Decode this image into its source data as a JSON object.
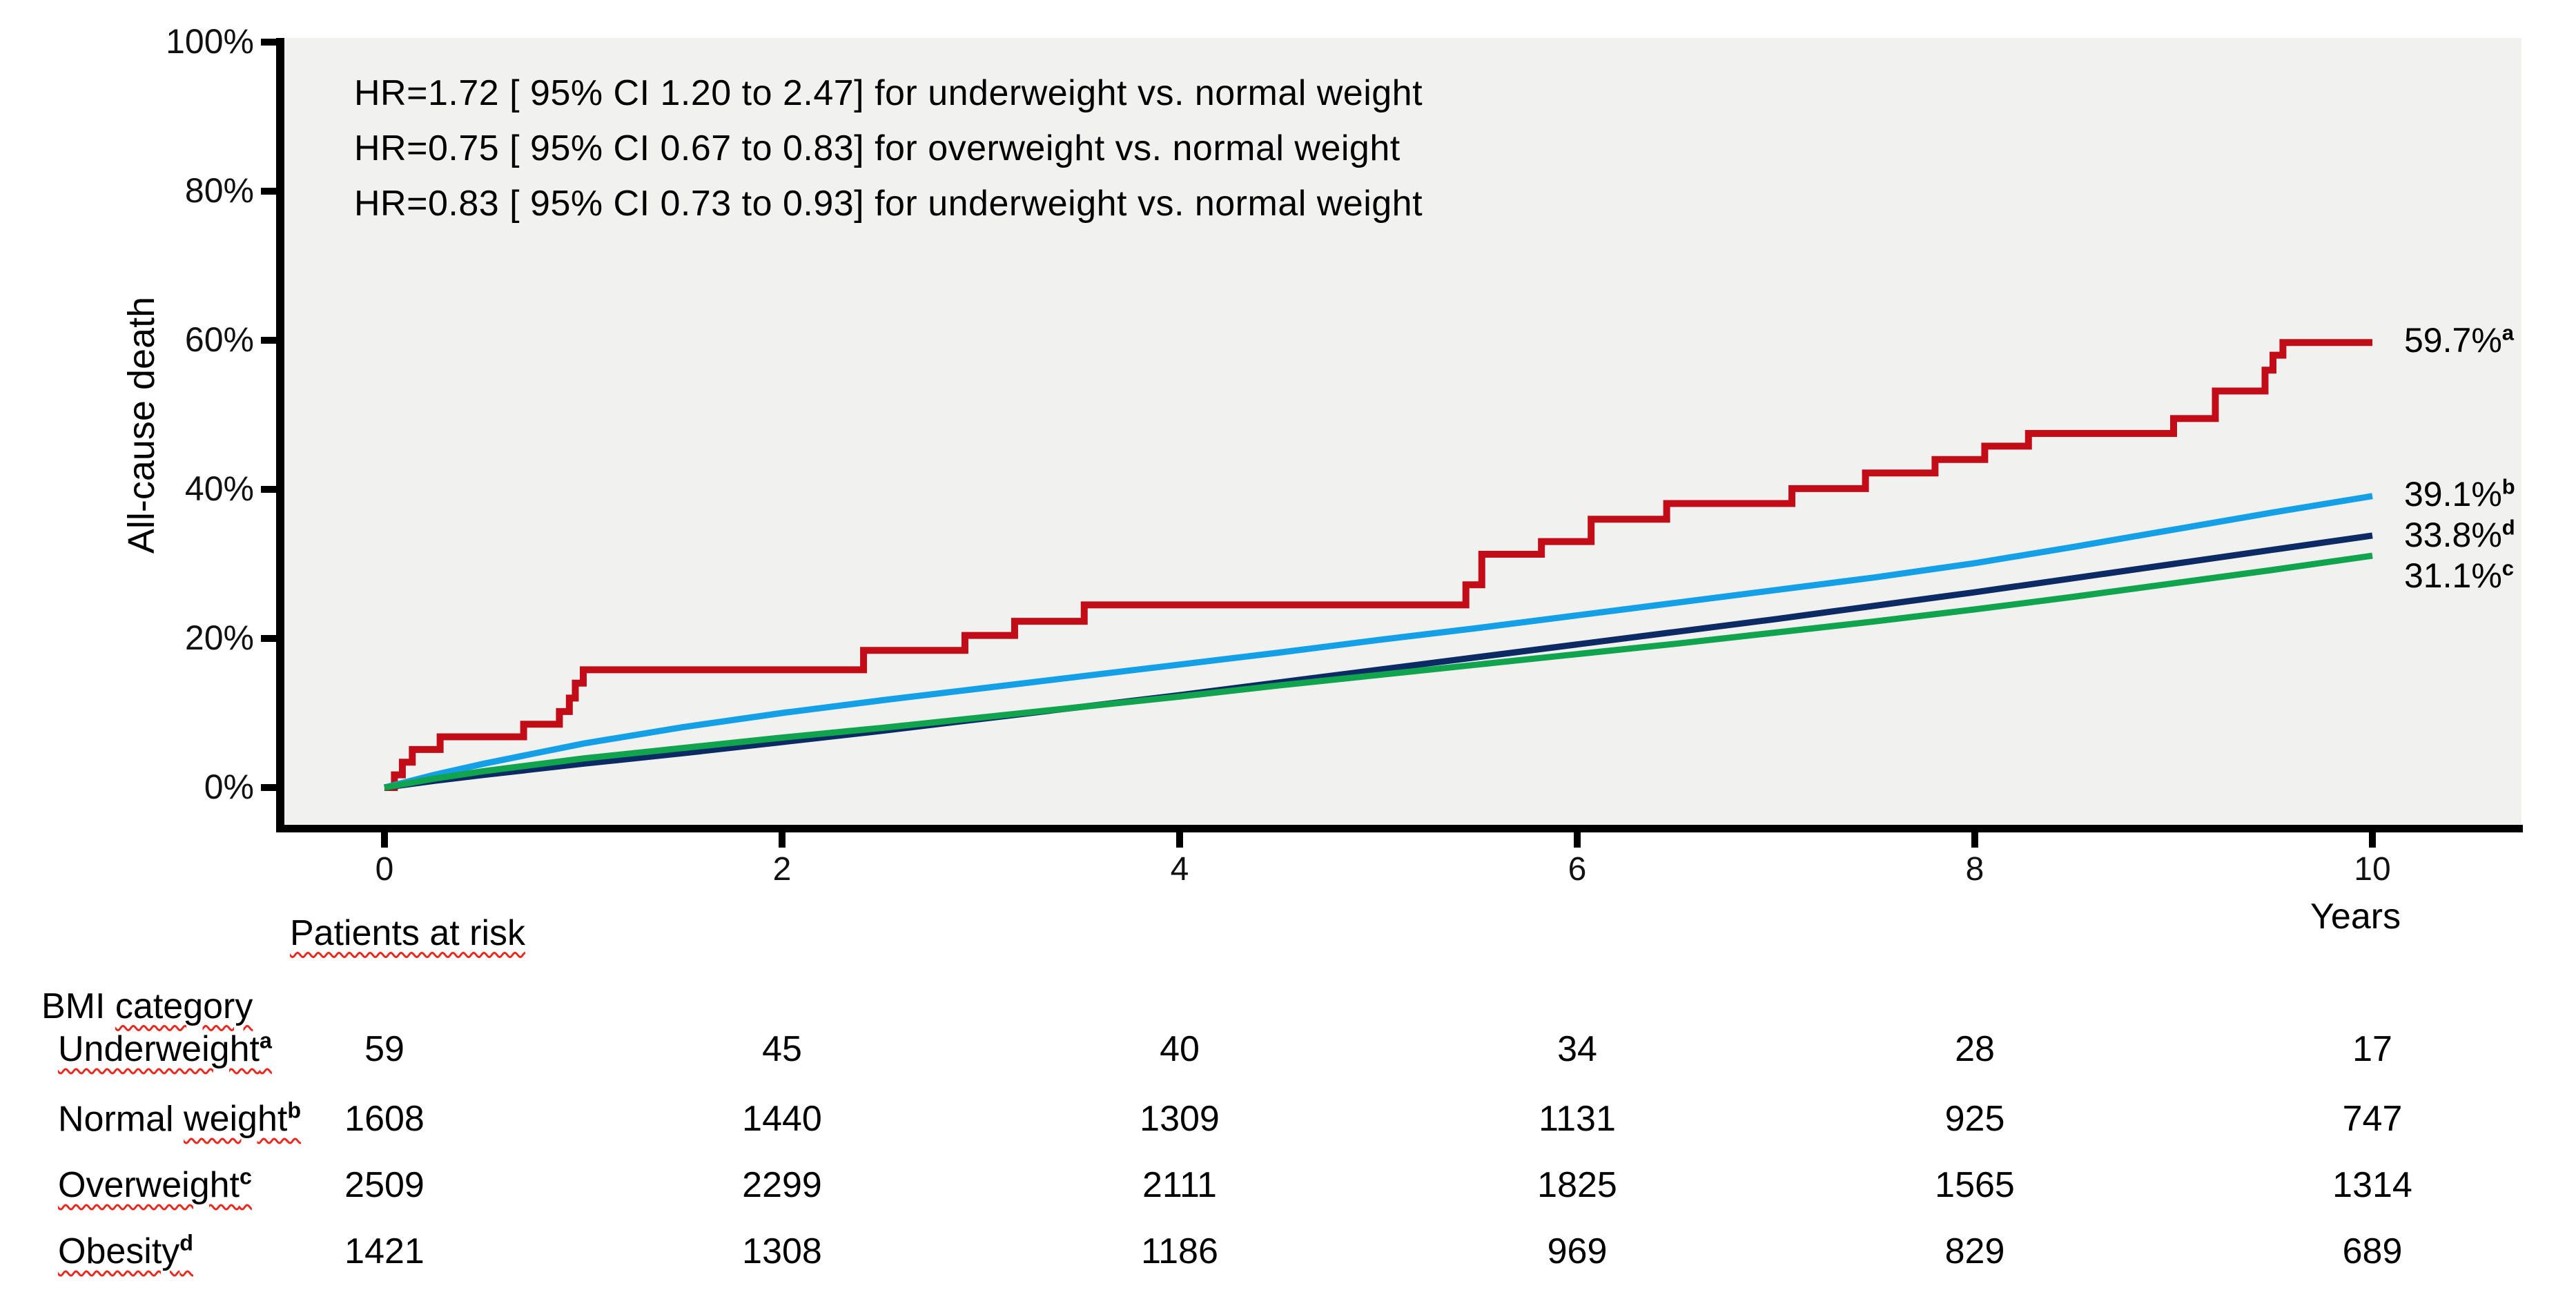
{
  "annotations": {
    "hr_lines": [
      "HR=1.72 [ 95% CI 1.20 to 2.47] for underweight vs. normal weight",
      "HR=0.75 [ 95% CI 0.67 to 0.83] for overweight vs. normal weight",
      "HR=0.83 [ 95% CI 0.73 to 0.93] for underweight vs. normal weight"
    ]
  },
  "chart_data": {
    "type": "line",
    "title": "",
    "ylabel": "All-cause death",
    "xlabel": "Years",
    "ylim": [
      0,
      100
    ],
    "xlim": [
      0,
      11
    ],
    "grid": false,
    "legend_position": "end-of-line labels",
    "plot_background": "#f1f1f0",
    "axis_color": "#000000",
    "yticks": [
      {
        "value": 0,
        "label": "0%"
      },
      {
        "value": 20,
        "label": "20%"
      },
      {
        "value": 40,
        "label": "40%"
      },
      {
        "value": 60,
        "label": "60%"
      },
      {
        "value": 80,
        "label": "80%"
      },
      {
        "value": 100,
        "label": "100%"
      }
    ],
    "xticks": [
      {
        "value": 0,
        "label": "0"
      },
      {
        "value": 2,
        "label": "2"
      },
      {
        "value": 4,
        "label": "4"
      },
      {
        "value": 6,
        "label": "6"
      },
      {
        "value": 8,
        "label": "8"
      },
      {
        "value": 10,
        "label": "10"
      }
    ],
    "series": [
      {
        "name": "Underweight",
        "letter": "a",
        "color": "#c20d18",
        "style": "step",
        "stroke_width": 10,
        "end_label": "59.7%",
        "end_label_sup": "a",
        "end_value": 59.7,
        "label_dy": 0,
        "points": [
          [
            0,
            0
          ],
          [
            0.05,
            1.7
          ],
          [
            0.09,
            3.4
          ],
          [
            0.14,
            5.1
          ],
          [
            0.28,
            6.8
          ],
          [
            0.7,
            8.5
          ],
          [
            0.88,
            10.2
          ],
          [
            0.93,
            12.0
          ],
          [
            0.96,
            14.0
          ],
          [
            1.0,
            15.8
          ],
          [
            2.41,
            18.4
          ],
          [
            2.92,
            20.4
          ],
          [
            3.17,
            22.3
          ],
          [
            3.52,
            24.5
          ],
          [
            5.44,
            27.2
          ],
          [
            5.52,
            31.3
          ],
          [
            5.82,
            33.0
          ],
          [
            6.07,
            36.0
          ],
          [
            6.45,
            38.1
          ],
          [
            7.08,
            40.1
          ],
          [
            7.45,
            42.2
          ],
          [
            7.8,
            44.0
          ],
          [
            8.05,
            45.8
          ],
          [
            8.27,
            47.5
          ],
          [
            9.0,
            49.5
          ],
          [
            9.21,
            53.2
          ],
          [
            9.46,
            56.0
          ],
          [
            9.5,
            58.0
          ],
          [
            9.55,
            59.7
          ],
          [
            10,
            59.7
          ]
        ]
      },
      {
        "name": "Normal weight",
        "letter": "b",
        "color": "#14a0e6",
        "style": "line",
        "stroke_width": 9,
        "end_label": "39.1%",
        "end_label_sup": "b",
        "end_value": 39.1,
        "label_dy": 0,
        "points": [
          [
            0,
            0
          ],
          [
            0.25,
            1.7
          ],
          [
            0.5,
            3.2
          ],
          [
            1,
            5.9
          ],
          [
            1.5,
            8.1
          ],
          [
            2,
            10.0
          ],
          [
            2.5,
            11.7
          ],
          [
            3,
            13.3
          ],
          [
            3.5,
            14.9
          ],
          [
            4,
            16.5
          ],
          [
            4.5,
            18.1
          ],
          [
            5,
            19.8
          ],
          [
            5.5,
            21.4
          ],
          [
            6,
            23.1
          ],
          [
            6.5,
            24.8
          ],
          [
            7,
            26.5
          ],
          [
            7.5,
            28.2
          ],
          [
            8,
            30.1
          ],
          [
            8.5,
            32.3
          ],
          [
            9,
            34.6
          ],
          [
            9.5,
            36.9
          ],
          [
            10,
            39.1
          ]
        ]
      },
      {
        "name": "Obesity",
        "letter": "d",
        "color": "#0c2a63",
        "style": "line",
        "stroke_width": 9,
        "end_label": "33.8%",
        "end_label_sup": "d",
        "end_value": 33.8,
        "label_dy": 2,
        "points": [
          [
            0,
            0
          ],
          [
            0.25,
            0.9
          ],
          [
            0.5,
            1.7
          ],
          [
            1,
            3.2
          ],
          [
            1.5,
            4.6
          ],
          [
            2,
            6.1
          ],
          [
            2.5,
            7.6
          ],
          [
            3,
            9.2
          ],
          [
            3.5,
            10.8
          ],
          [
            4,
            12.4
          ],
          [
            4.5,
            14.1
          ],
          [
            5,
            15.8
          ],
          [
            5.5,
            17.5
          ],
          [
            6,
            19.2
          ],
          [
            6.5,
            20.9
          ],
          [
            7,
            22.6
          ],
          [
            7.5,
            24.4
          ],
          [
            8,
            26.2
          ],
          [
            8.5,
            28.1
          ],
          [
            9,
            30.0
          ],
          [
            9.5,
            31.9
          ],
          [
            10,
            33.8
          ]
        ]
      },
      {
        "name": "Overweight",
        "letter": "c",
        "color": "#10a44e",
        "style": "line",
        "stroke_width": 9,
        "end_label": "31.1%",
        "end_label_sup": "c",
        "end_value": 31.1,
        "label_dy": 32,
        "points": [
          [
            0,
            0
          ],
          [
            0.25,
            1.2
          ],
          [
            0.5,
            2.2
          ],
          [
            1,
            3.9
          ],
          [
            1.5,
            5.3
          ],
          [
            2,
            6.7
          ],
          [
            2.5,
            8.0
          ],
          [
            3,
            9.4
          ],
          [
            3.5,
            10.8
          ],
          [
            4,
            12.2
          ],
          [
            4.5,
            13.7
          ],
          [
            5,
            15.1
          ],
          [
            5.5,
            16.5
          ],
          [
            6,
            17.9
          ],
          [
            6.5,
            19.3
          ],
          [
            7,
            20.8
          ],
          [
            7.5,
            22.3
          ],
          [
            8,
            23.9
          ],
          [
            8.5,
            25.6
          ],
          [
            9,
            27.4
          ],
          [
            9.5,
            29.2
          ],
          [
            10,
            31.1
          ]
        ]
      }
    ]
  },
  "risk_table": {
    "title": "Patients at risk",
    "group_header": {
      "pre": "BMI ",
      "wavy": "category"
    },
    "times": [
      0,
      2,
      4,
      6,
      8,
      10
    ],
    "rows": [
      {
        "pre": "",
        "wavy": "Underweight",
        "sup": "a",
        "counts": [
          "59",
          "45",
          "40",
          "34",
          "28",
          "17"
        ]
      },
      {
        "pre": "Normal ",
        "wavy": "weight",
        "sup": "b",
        "counts": [
          "1608",
          "1440",
          "1309",
          "1131",
          "925",
          "747"
        ]
      },
      {
        "pre": "",
        "wavy": "Overweight",
        "sup": "c",
        "counts": [
          "2509",
          "2299",
          "2111",
          "1825",
          "1565",
          "1314"
        ]
      },
      {
        "pre": "",
        "wavy": "Obesity",
        "sup": "d",
        "counts": [
          "1421",
          "1308",
          "1186",
          "969",
          "829",
          "689"
        ]
      }
    ]
  },
  "axis_titles": {
    "y": "All-cause death",
    "x": "Years"
  }
}
